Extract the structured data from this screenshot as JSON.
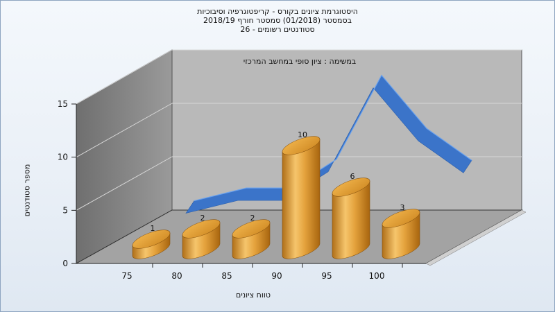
{
  "chart_data": {
    "type": "bar",
    "title_lines": [
      "היסטוגרמת ציונים בקורס - קריפטוגרפיה וסיבוכיות",
      "בסמסטר (01/2018) סמסטר חורף 2018/19",
      "סטודנטים רשומים - 26"
    ],
    "subtitle": "במשימה : ציון סופי במחשב המרכזי",
    "xlabel": "טווח ציונים",
    "ylabel": "מספר סטודנטים",
    "categories": [
      "75",
      "80",
      "85",
      "90",
      "95",
      "100"
    ],
    "values": [
      1,
      2,
      2,
      10,
      6,
      3
    ],
    "value_labels": [
      "1",
      "2",
      "2",
      "10",
      "6",
      "3"
    ],
    "y_ticks": [
      "0",
      "5",
      "10",
      "15"
    ],
    "ylim": [
      0,
      15
    ],
    "line_series_values": [
      1.4,
      2.6,
      2.6,
      5.3,
      13.2,
      8.2,
      5.2
    ],
    "colors": {
      "bar": "#e4a23c",
      "line": "#3b74c9",
      "back_wall": "#b9b9b9",
      "side_wall": "#8b8b8b",
      "floor": "#a3a3a3"
    }
  }
}
